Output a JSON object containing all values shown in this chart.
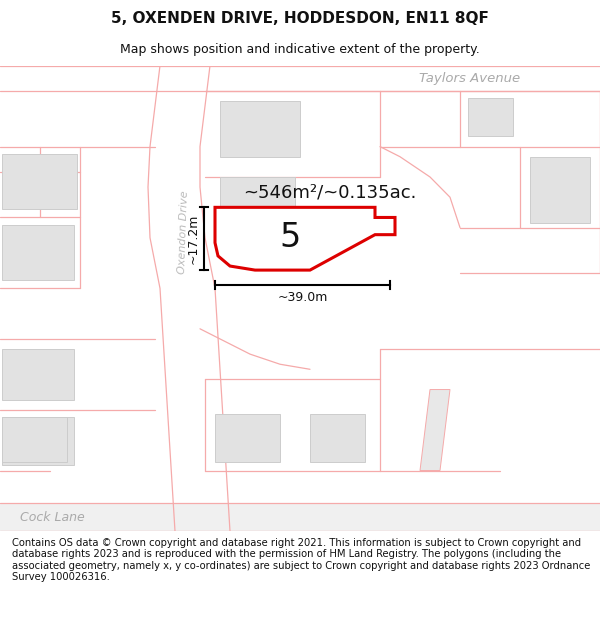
{
  "title_line1": "5, OXENDEN DRIVE, HODDESDON, EN11 8QF",
  "title_line2": "Map shows position and indicative extent of the property.",
  "footer_text": "Contains OS data © Crown copyright and database right 2021. This information is subject to Crown copyright and database rights 2023 and is reproduced with the permission of HM Land Registry. The polygons (including the associated geometry, namely x, y co-ordinates) are subject to Crown copyright and database rights 2023 Ordnance Survey 100026316.",
  "area_label": "~546m²/~0.135ac.",
  "property_number": "5",
  "dim_width": "~39.0m",
  "dim_height": "~17.2m",
  "street_label_oxendon": "Oxendon Drive",
  "street_label_taylors": "Taylors Avenue",
  "street_label_cock": "Cock Lane",
  "bg_color": "#ffffff",
  "map_bg": "#f8f8f8",
  "boundary_color": "#f5aaaa",
  "property_boundary_color": "#dd0000",
  "title_fontsize": 11,
  "subtitle_fontsize": 9,
  "footer_fontsize": 7.2
}
